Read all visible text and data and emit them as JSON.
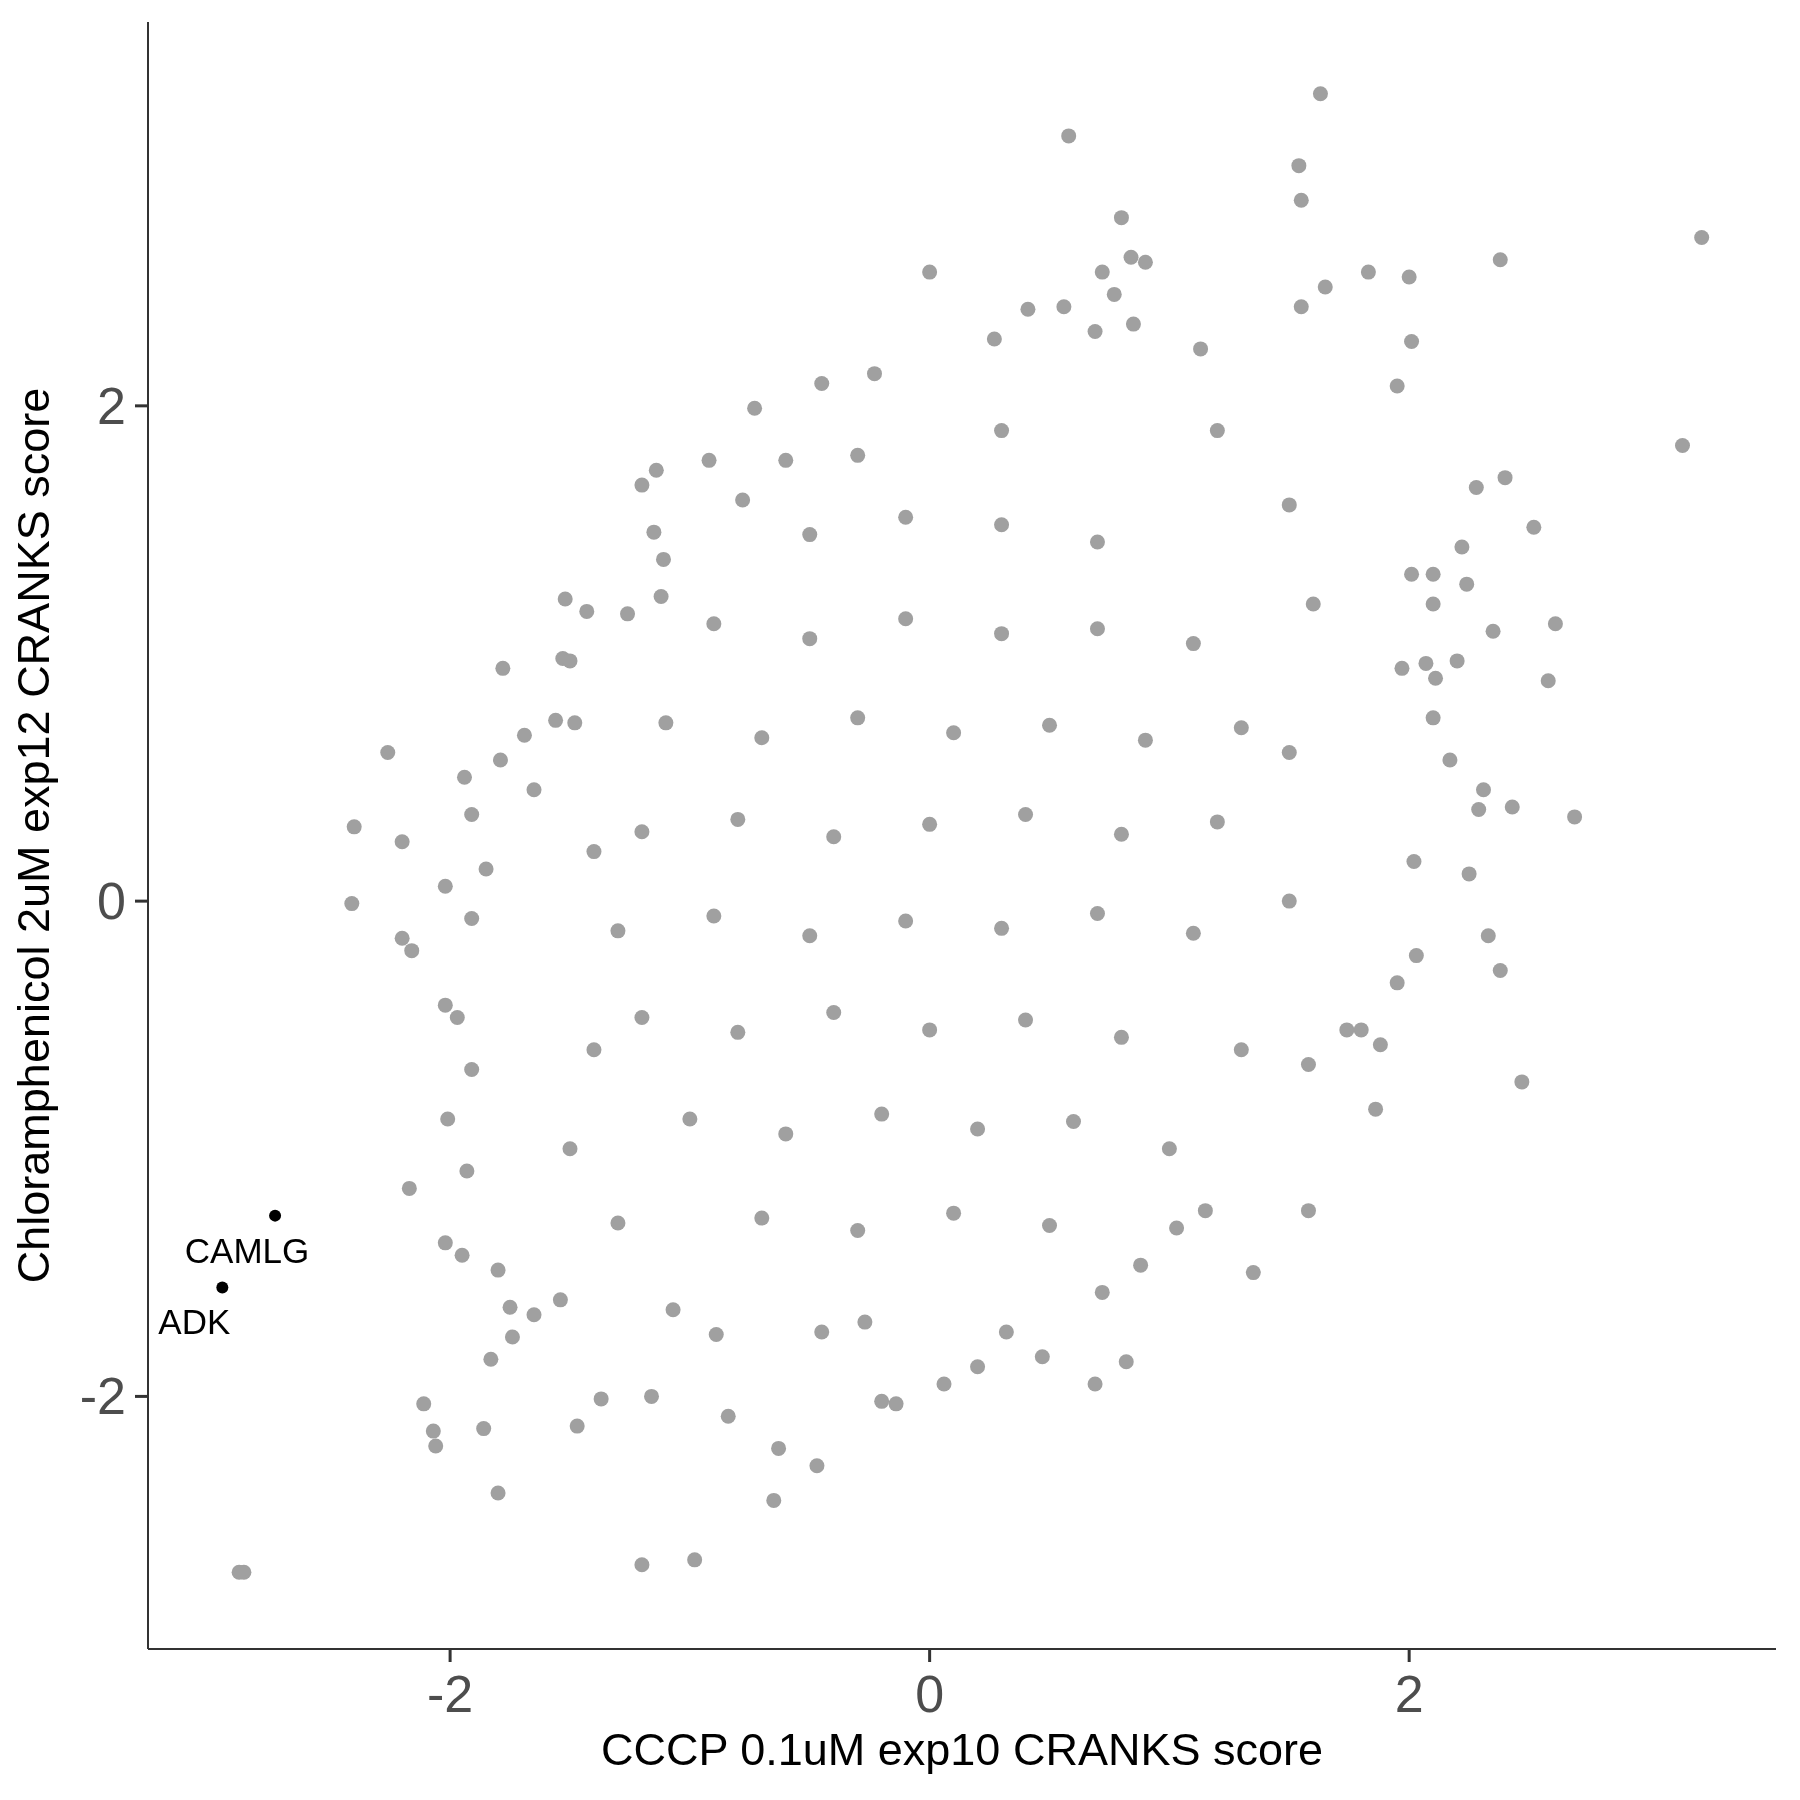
{
  "chart_data": {
    "type": "scatter",
    "xlabel": "CCCP 0.1uM exp10 CRANKS score",
    "ylabel": "Chloramphenicol 2uM exp12 CRANKS score",
    "xlim": [
      -3.26,
      3.53
    ],
    "ylim": [
      -3.02,
      3.55
    ],
    "xticks": [
      -2,
      0,
      2
    ],
    "yticks": [
      -2,
      0,
      2
    ],
    "marker": "circle",
    "series": [
      {
        "color": "#a0a0a0",
        "x": [
          1.63,
          0.58,
          1.54,
          1.55,
          3.22,
          0.8,
          0.0,
          0.84,
          0.72,
          0.9,
          2.38,
          1.83,
          2.0,
          1.65,
          1.55,
          0.56,
          0.41,
          0.77,
          0.27,
          0.69,
          0.85,
          2.01,
          1.95,
          3.14,
          -0.73,
          -0.45,
          -0.23,
          1.13,
          -2.26,
          -2.4,
          -2.41,
          -2.2,
          -2.2,
          -2.16,
          -1.94,
          -1.91,
          -1.79,
          -1.78,
          -1.69,
          -2.02,
          -1.85,
          -1.91,
          -2.02,
          -1.97,
          -1.91,
          -2.01,
          -1.93,
          -2.17,
          -2.02,
          -1.95,
          -1.8,
          -2.11,
          -2.07,
          -2.06,
          -1.86,
          -1.83,
          -1.8,
          -2.86,
          -2.88,
          -1.74,
          -1.75,
          -1.2,
          -0.98,
          -0.65,
          -0.47,
          -0.63,
          -0.84,
          -1.47,
          -1.37,
          -1.16,
          -0.2,
          -0.14,
          0.06,
          0.2,
          0.47,
          0.69,
          0.82,
          0.32,
          1.35,
          1.58,
          1.03,
          1.15,
          0.72,
          0.88,
          -0.45,
          -0.27,
          -0.89,
          -1.07,
          -1.54,
          -1.65,
          2.69,
          2.58,
          2.61,
          2.52,
          2.4,
          2.28,
          2.22,
          2.24,
          2.35,
          2.43,
          2.31,
          2.29,
          2.17,
          2.25,
          2.33,
          2.38,
          2.47,
          1.86,
          1.88,
          1.95,
          2.03,
          2.02,
          2.1,
          2.11,
          2.07,
          2.2,
          2.1,
          2.01,
          2.1,
          1.97,
          1.8,
          1.74,
          1.58,
          -1.52,
          -1.43,
          -1.53,
          -1.5,
          -1.26,
          -1.12,
          -1.2,
          -1.14,
          -1.15,
          -1.11,
          -0.92,
          -0.78,
          -0.6,
          -1.65,
          -1.56,
          -1.48,
          1.2,
          1.5,
          1.6,
          1.5,
          1.5,
          1.3,
          1.0,
          -1.4,
          -1.5,
          -1.3,
          -1.4,
          0.3,
          -0.3,
          -0.5,
          -0.1,
          0.3,
          0.7,
          -0.9,
          -0.5,
          -0.1,
          0.3,
          0.7,
          1.1,
          -1.1,
          -0.7,
          -0.3,
          0.1,
          0.5,
          0.9,
          1.3,
          -1.2,
          -0.8,
          -0.4,
          0.0,
          0.4,
          0.8,
          1.2,
          -1.3,
          -0.9,
          -0.5,
          -0.1,
          0.3,
          0.7,
          1.1,
          -1.2,
          -0.8,
          -0.4,
          0.0,
          0.4,
          0.8,
          -1.0,
          -0.6,
          -0.2,
          0.2,
          0.6,
          -0.7,
          -0.3,
          0.1,
          0.5
        ],
        "values": [
          3.26,
          3.09,
          2.97,
          2.83,
          2.68,
          2.76,
          2.54,
          2.6,
          2.54,
          2.58,
          2.59,
          2.54,
          2.52,
          2.48,
          2.4,
          2.4,
          2.39,
          2.45,
          2.27,
          2.3,
          2.33,
          2.26,
          2.08,
          1.84,
          1.99,
          2.09,
          2.13,
          2.23,
          0.6,
          0.3,
          -0.01,
          0.24,
          -0.15,
          -0.2,
          0.5,
          0.35,
          0.57,
          0.94,
          0.67,
          0.06,
          0.13,
          -0.07,
          -0.42,
          -0.47,
          -0.68,
          -0.88,
          -1.09,
          -1.16,
          -1.38,
          -1.43,
          -1.49,
          -2.03,
          -2.14,
          -2.2,
          -2.13,
          -1.85,
          -2.39,
          -2.71,
          -2.71,
          -1.76,
          -1.64,
          -2.68,
          -2.66,
          -2.42,
          -2.28,
          -2.21,
          -2.08,
          -2.12,
          -2.01,
          -2.0,
          -2.02,
          -2.03,
          -1.95,
          -1.88,
          -1.84,
          -1.95,
          -1.86,
          -1.74,
          -1.5,
          -1.25,
          -1.32,
          -1.25,
          -1.58,
          -1.47,
          -1.74,
          -1.7,
          -1.75,
          -1.65,
          -1.61,
          -1.67,
          0.34,
          0.89,
          1.12,
          1.51,
          1.71,
          1.67,
          1.43,
          1.28,
          1.09,
          0.38,
          0.45,
          0.37,
          0.57,
          0.11,
          -0.14,
          -0.28,
          -0.73,
          -0.84,
          -0.58,
          -0.33,
          -0.22,
          0.16,
          0.74,
          0.9,
          0.96,
          0.97,
          1.2,
          1.32,
          1.32,
          0.94,
          -0.52,
          -0.52,
          -0.66,
          1.22,
          1.17,
          0.98,
          0.97,
          1.16,
          1.23,
          1.68,
          1.74,
          1.49,
          1.38,
          1.78,
          1.62,
          1.78,
          0.45,
          0.73,
          0.72,
          1.9,
          1.6,
          1.2,
          0.6,
          0.0,
          -0.6,
          -1.0,
          -0.6,
          -1.0,
          -1.3,
          0.2,
          1.9,
          1.8,
          1.48,
          1.55,
          1.52,
          1.45,
          1.12,
          1.06,
          1.14,
          1.08,
          1.1,
          1.04,
          0.72,
          0.66,
          0.74,
          0.68,
          0.71,
          0.65,
          0.7,
          0.28,
          0.33,
          0.26,
          0.31,
          0.35,
          0.27,
          0.32,
          -0.12,
          -0.06,
          -0.14,
          -0.08,
          -0.11,
          -0.05,
          -0.13,
          -0.47,
          -0.53,
          -0.45,
          -0.52,
          -0.48,
          -0.55,
          -0.88,
          -0.94,
          -0.86,
          -0.92,
          -0.89,
          -1.28,
          -1.33,
          -1.26,
          -1.31
        ]
      },
      {
        "color": "#000000",
        "x": [
          -2.73,
          -2.95
        ],
        "values": [
          -1.27,
          -1.56
        ]
      }
    ],
    "annotations": [
      {
        "text": "CAMLG",
        "x": -2.73,
        "y": -1.27
      },
      {
        "text": "ADK",
        "x": -2.95,
        "y": -1.56
      }
    ]
  }
}
